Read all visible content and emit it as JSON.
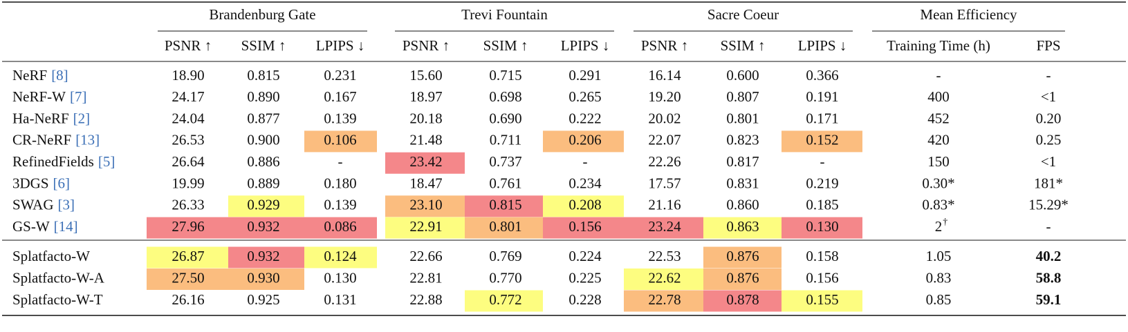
{
  "table": {
    "groups": [
      {
        "label": "Brandenburg Gate",
        "span": 3
      },
      {
        "label": "Trevi Fountain",
        "span": 3
      },
      {
        "label": "Sacre Coeur",
        "span": 3
      },
      {
        "label": "Mean Efficiency",
        "span": 2
      }
    ],
    "columns": [
      "PSNR ↑",
      "SSIM ↑",
      "LPIPS ↓",
      "PSNR ↑",
      "SSIM ↑",
      "LPIPS ↓",
      "PSNR ↑",
      "SSIM ↑",
      "LPIPS ↓",
      "Training Time (h)",
      "FPS"
    ],
    "baselines": [
      {
        "method": "NeRF",
        "ref": "[8]",
        "cells": [
          "18.90",
          "0.815",
          "0.231",
          "15.60",
          "0.715",
          "0.291",
          "16.14",
          "0.600",
          "0.366",
          "-",
          "-"
        ],
        "fills": [
          null,
          null,
          null,
          null,
          null,
          null,
          null,
          null,
          null,
          null,
          null
        ]
      },
      {
        "method": "NeRF-W",
        "ref": "[7]",
        "cells": [
          "24.17",
          "0.890",
          "0.167",
          "18.97",
          "0.698",
          "0.265",
          "19.20",
          "0.807",
          "0.191",
          "400",
          "<1"
        ],
        "fills": [
          null,
          null,
          null,
          null,
          null,
          null,
          null,
          null,
          null,
          null,
          null
        ]
      },
      {
        "method": "Ha-NeRF",
        "ref": "[2]",
        "cells": [
          "24.04",
          "0.877",
          "0.139",
          "20.18",
          "0.690",
          "0.222",
          "20.02",
          "0.801",
          "0.171",
          "452",
          "0.20"
        ],
        "fills": [
          null,
          null,
          null,
          null,
          null,
          null,
          null,
          null,
          null,
          null,
          null
        ]
      },
      {
        "method": "CR-NeRF",
        "ref": "[13]",
        "cells": [
          "26.53",
          "0.900",
          "0.106",
          "21.48",
          "0.711",
          "0.206",
          "22.07",
          "0.823",
          "0.152",
          "420",
          "0.25"
        ],
        "fills": [
          null,
          null,
          "#fbbd7f",
          null,
          null,
          "#fbbd7f",
          null,
          null,
          "#fbbd7f",
          null,
          null
        ]
      },
      {
        "method": "RefinedFields",
        "ref": "[5]",
        "cells": [
          "26.64",
          "0.886",
          "-",
          "23.42",
          "0.737",
          "-",
          "22.26",
          "0.817",
          "-",
          "150",
          "<1"
        ],
        "fills": [
          null,
          null,
          null,
          "#f4878a",
          null,
          null,
          null,
          null,
          null,
          null,
          null
        ]
      },
      {
        "method": "3DGS",
        "ref": "[6]",
        "cells": [
          "19.99",
          "0.889",
          "0.180",
          "18.47",
          "0.761",
          "0.234",
          "17.57",
          "0.831",
          "0.219",
          "0.30*",
          "181*"
        ],
        "fills": [
          null,
          null,
          null,
          null,
          null,
          null,
          null,
          null,
          null,
          null,
          null
        ]
      },
      {
        "method": "SWAG",
        "ref": "[3]",
        "cells": [
          "26.33",
          "0.929",
          "0.139",
          "23.10",
          "0.815",
          "0.208",
          "21.16",
          "0.860",
          "0.185",
          "0.83*",
          "15.29*"
        ],
        "fills": [
          null,
          "#fdfd80",
          null,
          "#fbbd7f",
          "#f4878a",
          "#fdfd80",
          null,
          null,
          null,
          null,
          null
        ]
      },
      {
        "method": "GS-W",
        "ref": "[14]",
        "cells": [
          "27.96",
          "0.932",
          "0.086",
          "22.91",
          "0.801",
          "0.156",
          "23.24",
          "0.863",
          "0.130",
          {
            "text": "2",
            "sup": "†"
          },
          "-"
        ],
        "fills": [
          "#f4878a",
          "#f4878a",
          "#f4878a",
          "#fdfd80",
          "#fbbd7f",
          "#f4878a",
          "#f4878a",
          "#fdfd80",
          "#f4878a",
          null,
          null
        ]
      }
    ],
    "ours": [
      {
        "method": "Splatfacto-W",
        "cells": [
          "26.87",
          "0.932",
          "0.124",
          "22.66",
          "0.769",
          "0.224",
          "22.53",
          "0.876",
          "0.158",
          "1.05",
          "40.2"
        ],
        "fills": [
          "#fdfd80",
          "#f4878a",
          "#fdfd80",
          null,
          null,
          null,
          null,
          "#fbbd7f",
          null,
          null,
          null
        ],
        "bold": [
          10
        ]
      },
      {
        "method": "Splatfacto-W-A",
        "cells": [
          "27.50",
          "0.930",
          "0.130",
          "22.81",
          "0.770",
          "0.225",
          "22.62",
          "0.876",
          "0.156",
          "0.83",
          "58.8"
        ],
        "fills": [
          "#fbbd7f",
          "#fbbd7f",
          null,
          null,
          null,
          null,
          "#fdfd80",
          "#fbbd7f",
          null,
          null,
          null
        ],
        "bold": [
          10
        ]
      },
      {
        "method": "Splatfacto-W-T",
        "cells": [
          "26.16",
          "0.925",
          "0.131",
          "22.88",
          "0.772",
          "0.228",
          "22.78",
          "0.878",
          "0.155",
          "0.85",
          "59.1"
        ],
        "fills": [
          null,
          null,
          null,
          null,
          "#fdfd80",
          null,
          "#fbbd7f",
          "#f4878a",
          "#fdfd80",
          null,
          null
        ],
        "bold": [
          10
        ]
      }
    ]
  }
}
